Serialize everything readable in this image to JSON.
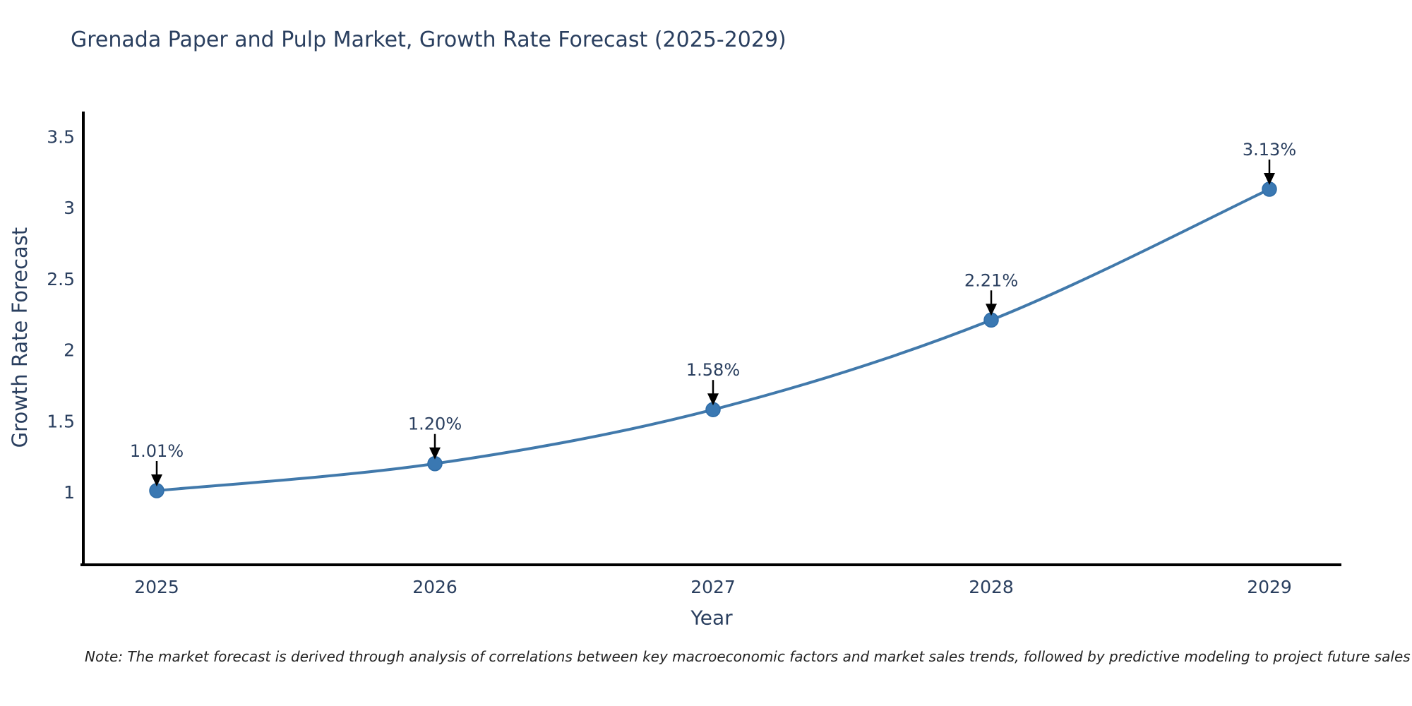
{
  "title": "Grenada Paper and Pulp Market, Growth Rate Forecast (2025-2029)",
  "note": "Note: The market forecast is derived through analysis of correlations between key macroeconomic factors and market sales trends, followed by predictive modeling to project future sales",
  "colors": {
    "background": "#ffffff",
    "line": "#4179ab",
    "marker_fill": "#3a78b2",
    "marker_edge": "#2f6da8",
    "axis_line": "#000000",
    "text": "#2a3f5f",
    "annotation_text": "#2a3f5f",
    "annotation_arrow": "#000000",
    "note_text": "#222222"
  },
  "chart_data": {
    "type": "line",
    "title": "Grenada Paper and Pulp Market, Growth Rate Forecast (2025-2029)",
    "xlabel": "Year",
    "ylabel": "Growth Rate Forecast",
    "x": [
      2025,
      2026,
      2027,
      2028,
      2029
    ],
    "x_tick_labels": [
      "2025",
      "2026",
      "2027",
      "2028",
      "2029"
    ],
    "series": [
      {
        "name": "Growth Rate Forecast",
        "values": [
          1.01,
          1.2,
          1.58,
          2.21,
          3.13
        ],
        "point_labels": [
          "1.01%",
          "1.20%",
          "1.58%",
          "2.21%",
          "3.13%"
        ]
      }
    ],
    "y_ticks": [
      1,
      1.5,
      2,
      2.5,
      3,
      3.5
    ],
    "ylim": [
      0.49,
      3.68
    ],
    "grid": false,
    "legend": false,
    "line_shape": "spline",
    "markers": true,
    "annotation_style": "value-label-with-down-arrow"
  }
}
